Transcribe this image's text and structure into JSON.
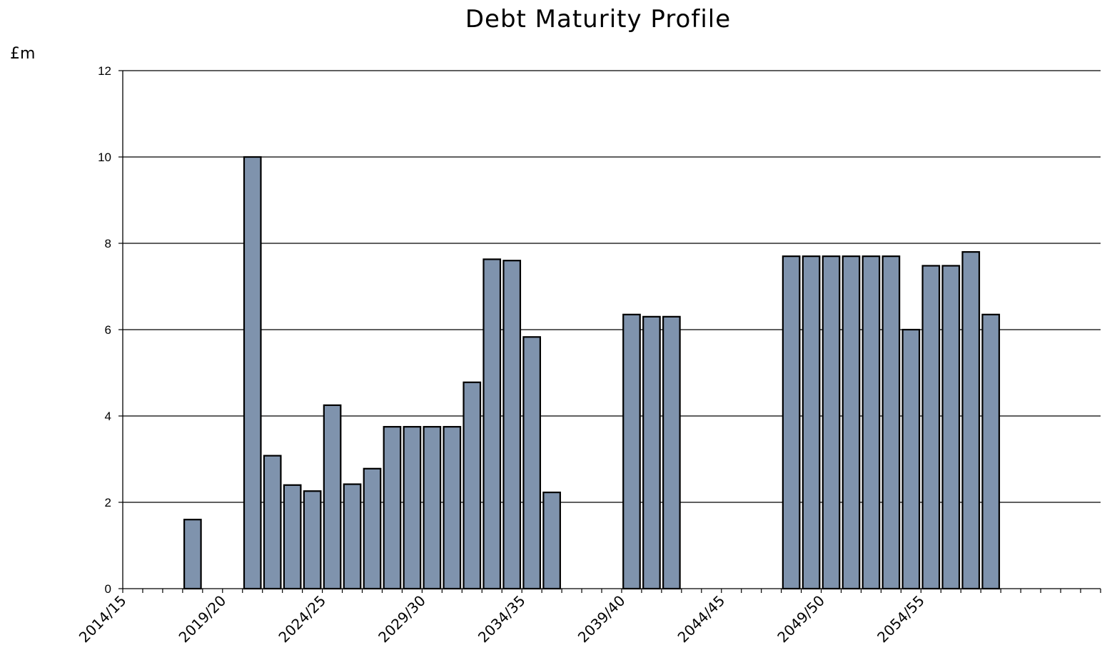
{
  "chart_data": {
    "type": "bar",
    "title": "Debt Maturity Profile",
    "ylabel": "£m",
    "xlabel": "",
    "ylim": [
      0,
      12
    ],
    "yticks": [
      0,
      2,
      4,
      6,
      8,
      10,
      12
    ],
    "grid": true,
    "legend": "none",
    "bar_color": "#7f93ad",
    "categories": [
      "2014/15",
      "2015/16",
      "2016/17",
      "2017/18",
      "2018/19",
      "2019/20",
      "2020/21",
      "2021/22",
      "2022/23",
      "2023/24",
      "2024/25",
      "2025/26",
      "2026/27",
      "2027/28",
      "2028/29",
      "2029/30",
      "2030/31",
      "2031/32",
      "2032/33",
      "2033/34",
      "2034/35",
      "2035/36",
      "2036/37",
      "2037/38",
      "2038/39",
      "2039/40",
      "2040/41",
      "2041/42",
      "2042/43",
      "2043/44",
      "2044/45",
      "2045/46",
      "2046/47",
      "2047/48",
      "2048/49",
      "2049/50",
      "2050/51",
      "2051/52",
      "2052/53",
      "2053/54",
      "2054/55",
      "2055/56",
      "2056/57",
      "2057/58",
      "2058/59",
      "2059/60",
      "2060/61",
      "2061/62",
      "2062/63"
    ],
    "tick_labels": [
      "2014/15",
      "2019/20",
      "2024/25",
      "2029/30",
      "2034/35",
      "2039/40",
      "2044/45",
      "2049/50",
      "2054/55"
    ],
    "values": [
      0,
      0,
      0,
      1.6,
      0,
      0,
      10.0,
      3.08,
      2.4,
      2.26,
      4.25,
      2.42,
      2.78,
      3.75,
      3.75,
      3.75,
      3.75,
      4.78,
      7.63,
      7.6,
      5.83,
      2.23,
      0,
      0,
      0,
      6.35,
      6.3,
      6.3,
      0,
      0,
      0,
      0,
      0,
      7.7,
      7.7,
      7.7,
      7.7,
      7.7,
      7.7,
      6.0,
      7.48,
      7.48,
      7.8,
      6.35,
      0,
      0,
      0,
      0,
      0
    ]
  }
}
